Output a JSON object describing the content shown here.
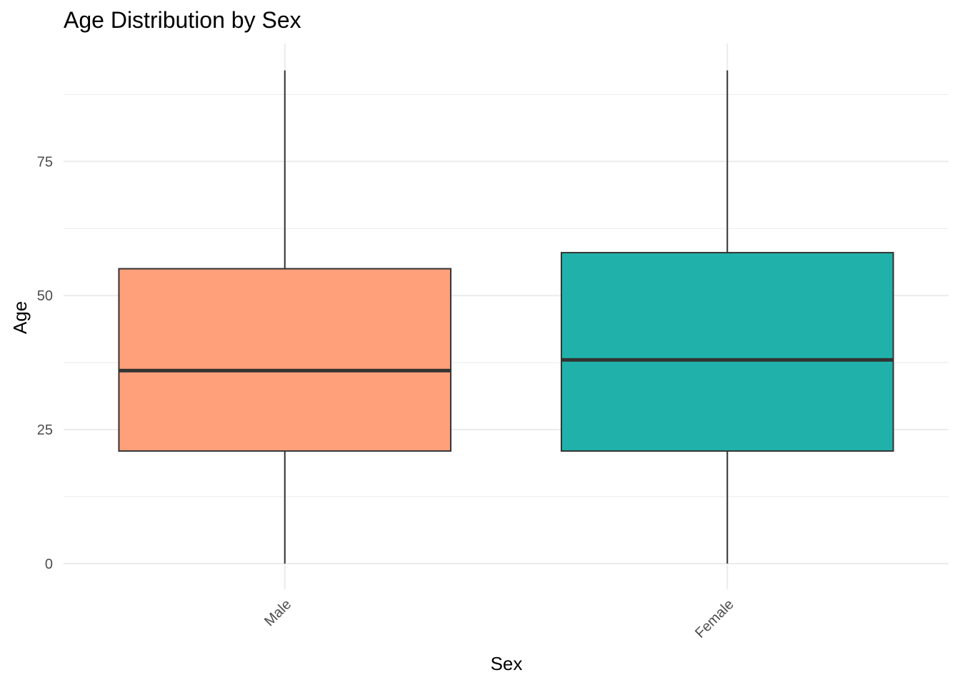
{
  "chart_data": {
    "type": "boxplot",
    "title": "Age Distribution by Sex",
    "xlabel": "Sex",
    "ylabel": "Age",
    "categories": [
      "Male",
      "Female"
    ],
    "boxes": [
      {
        "category": "Male",
        "min": 0,
        "q1": 21,
        "median": 36,
        "q3": 55,
        "max": 92,
        "color": "#FFA07A"
      },
      {
        "category": "Female",
        "min": 0,
        "q1": 21,
        "median": 38,
        "q3": 58,
        "max": 92,
        "color": "#20B2AA"
      }
    ],
    "yticks": [
      0,
      25,
      50,
      75
    ],
    "yticklabels": [
      "0",
      "25",
      "50",
      "75"
    ],
    "ylim": [
      -4.8,
      97
    ],
    "grid": true,
    "x_tick_rotation": "45 degrees",
    "colors": {
      "outline": "#333333",
      "grid": "#EBEBEB",
      "tick_text": "#4D4D4D"
    }
  }
}
